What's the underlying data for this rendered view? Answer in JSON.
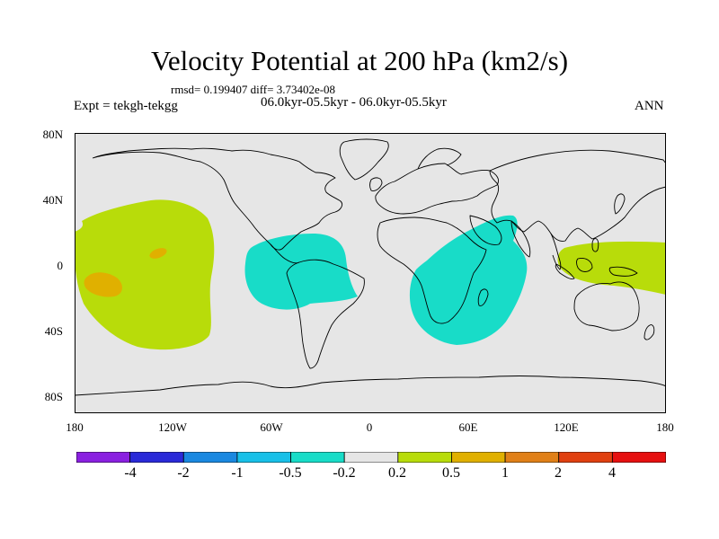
{
  "title": "Velocity Potential at 200 hPa (km2/s)",
  "stats_line": "rmsd= 0.199407 diff= 3.73402e-08",
  "experiment": "Expt = tekgh-tekgg",
  "period": "06.0kyr-05.5kyr - 06.0kyr-05.5kyr",
  "season": "ANN",
  "axes": {
    "lat_labels": [
      "80N",
      "40N",
      "0",
      "40S",
      "80S"
    ],
    "lon_labels": [
      "180",
      "120W",
      "60W",
      "0",
      "60E",
      "120E",
      "180"
    ]
  },
  "colors": {
    "ocean_background": "#e6e6e6",
    "coastline": "#000000"
  },
  "colorbar": {
    "labels": [
      "-4",
      "-2",
      "-1",
      "-0.5",
      "-0.2",
      "0.2",
      "0.5",
      "1",
      "2",
      "4"
    ],
    "colors": [
      "#8a20e0",
      "#2a2ad8",
      "#1a88e0",
      "#18c0e8",
      "#18dcc8",
      "#e6e6e6",
      "#b8dc0a",
      "#e0b000",
      "#e08018",
      "#e04010",
      "#e61010"
    ]
  },
  "map_features": [
    {
      "name": "Positive anomaly over central Pacific",
      "class": "0.2 to 0.5",
      "color": "#b8dc0a"
    },
    {
      "name": "Positive anomaly over Maritime Continent and western Pacific",
      "class": "0.2 to 0.5",
      "color": "#b8dc0a"
    },
    {
      "name": "Small positive core near Hawaii",
      "class": "0.5 to 1",
      "color": "#e0b000"
    },
    {
      "name": "Positive core in tropical South Pacific",
      "class": "0.5 to 1",
      "color": "#e0b000"
    },
    {
      "name": "Negative anomaly over tropical South America and Atlantic",
      "class": "-0.5 to -0.2",
      "color": "#18dcc8"
    },
    {
      "name": "Negative anomaly over Africa and western Indian Ocean",
      "class": "-0.5 to -0.2",
      "color": "#18dcc8"
    }
  ]
}
